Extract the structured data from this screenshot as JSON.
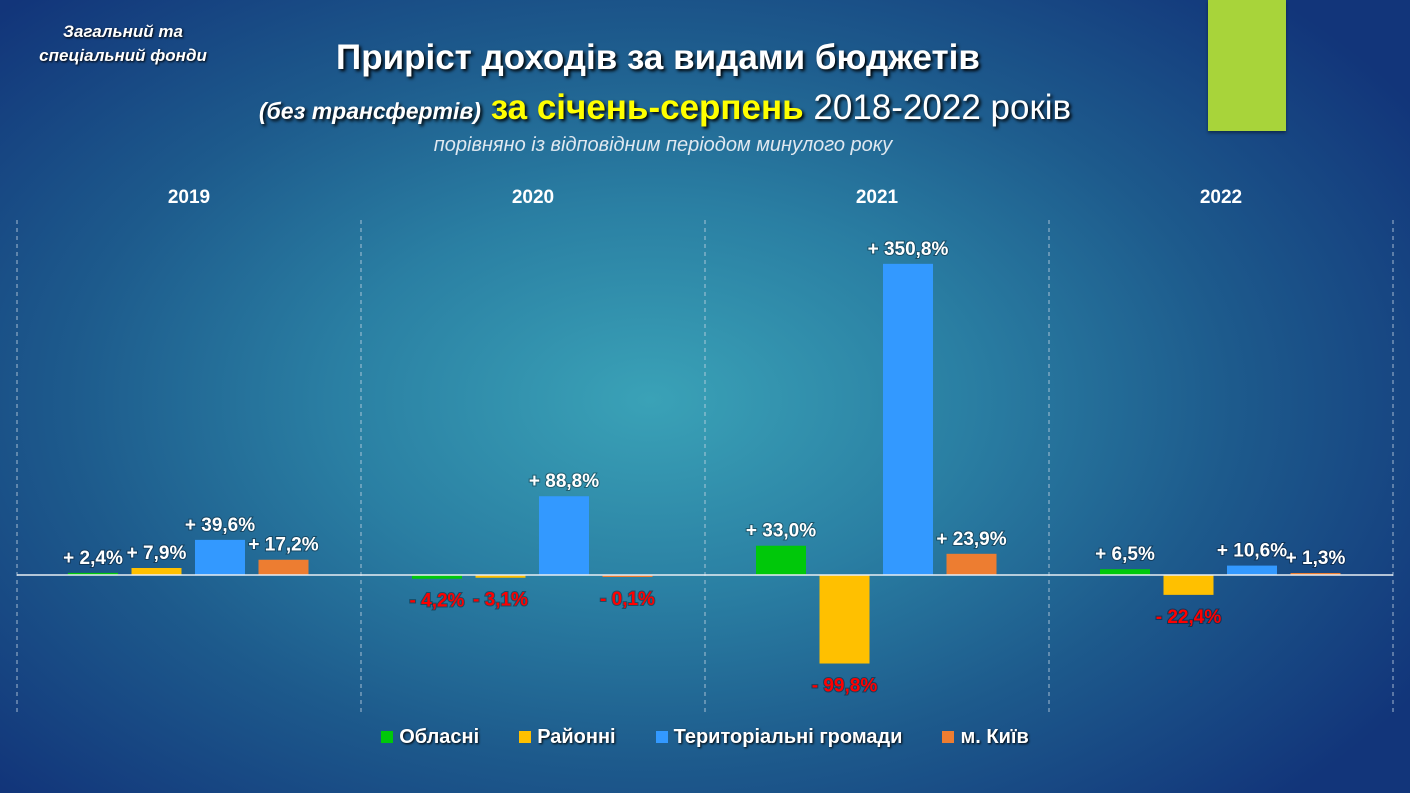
{
  "header": {
    "fund_line1": "Загальний та",
    "fund_line2": "спеціальний фонди",
    "title": "Приріст доходів за видами бюджетів",
    "title2_a": "(без трансфертів)",
    "title2_b": "за січень-серпень",
    "title2_c": "2018-2022 років",
    "subtitle": "порівняно із відповідним періодом минулого року"
  },
  "chart_data": {
    "type": "bar",
    "title": "Приріст доходів за видами бюджетів (без трансфертів) за січень-серпень 2018-2022 років",
    "categories": [
      "2019",
      "2020",
      "2021",
      "2022"
    ],
    "series": [
      {
        "name": "Обласні",
        "color": "#00c80a",
        "values": [
          2.4,
          -4.2,
          33.0,
          6.5
        ],
        "labels": [
          "+ 2,4%",
          "- 4,2%",
          "+ 33,0%",
          "+ 6,5%"
        ]
      },
      {
        "name": "Районні",
        "color": "#ffc000",
        "values": [
          7.9,
          -3.1,
          -99.8,
          -22.4
        ],
        "labels": [
          "+ 7,9%",
          "- 3,1%",
          "- 99,8%",
          "- 22,4%"
        ]
      },
      {
        "name": "Територіальні громади",
        "color": "#3399ff",
        "values": [
          39.6,
          88.8,
          350.8,
          10.6
        ],
        "labels": [
          "+ 39,6%",
          "+ 88,8%",
          "+ 350,8%",
          "+ 10,6%"
        ]
      },
      {
        "name": "м. Київ",
        "color": "#ed7d31",
        "values": [
          17.2,
          -0.1,
          23.9,
          1.3
        ],
        "labels": [
          "+ 17,2%",
          "- 0,1%",
          "+ 23,9%",
          "+ 1,3%"
        ]
      }
    ],
    "ylim": [
      -130,
      400
    ],
    "grid": false,
    "legend": "bottom",
    "negative_label_color": "#ff0000"
  }
}
